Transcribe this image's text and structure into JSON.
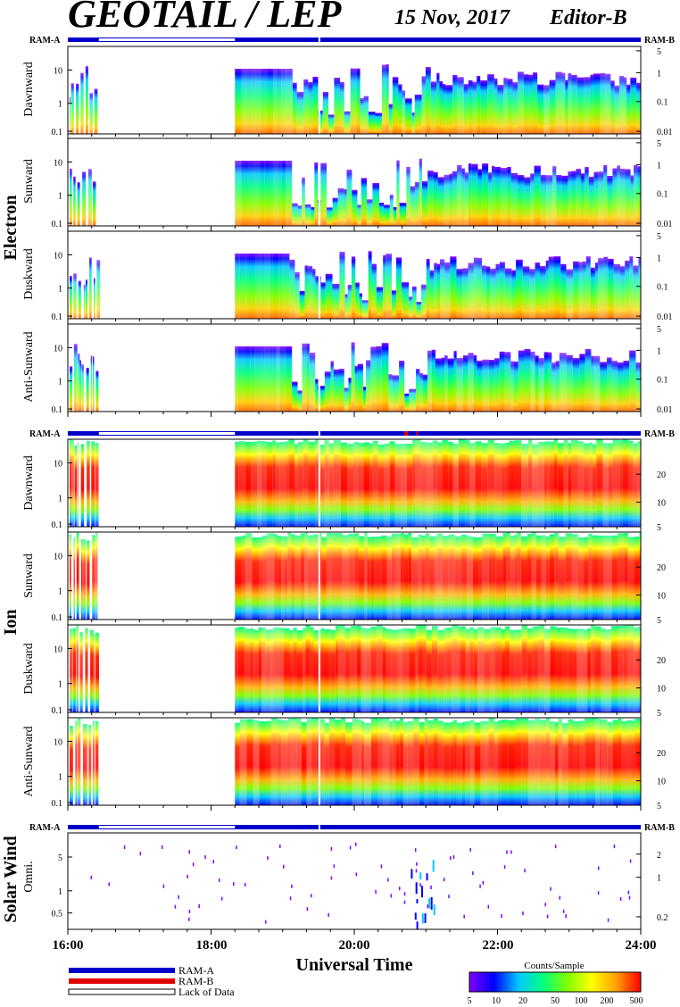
{
  "header": {
    "title": "GEOTAIL / LEP",
    "date": "15 Nov, 2017",
    "editor": "Editor-B"
  },
  "sections": {
    "electron": "Electron",
    "ion": "Ion",
    "solar_wind": "Solar Wind"
  },
  "status_labels": {
    "ram_a": "RAM-A",
    "ram_b": "RAM-B"
  },
  "panel_labels": [
    "Dawnward",
    "Sunward",
    "Duskward",
    "Anti-Sunward",
    "Dawnward",
    "Sunward",
    "Duskward",
    "Anti-Sunward",
    "Omni."
  ],
  "x_axis": {
    "label": "Universal Time",
    "ticks": [
      "16:00",
      "18:00",
      "20:00",
      "22:00",
      "24:00"
    ]
  },
  "legend": {
    "ram_a": "RAM-A",
    "ram_b": "RAM-B",
    "lack": "Lack of Data",
    "colors": {
      "ram_a": "#0000c8",
      "ram_b": "#e00000",
      "lack": "#ffffff"
    }
  },
  "colorbar": {
    "title": "Counts/Sample",
    "ticks": [
      "5",
      "10",
      "20",
      "50",
      "100",
      "200",
      "500"
    ],
    "colors": [
      "#7f00ff",
      "#0000ff",
      "#00c8ff",
      "#00ff80",
      "#80ff00",
      "#ffff00",
      "#ffa000",
      "#ff0000"
    ]
  },
  "chart_data": [
    {
      "type": "heatmap",
      "name": "Electron Dawnward",
      "x_range": [
        "16:00",
        "24:00"
      ],
      "left_ticks": [
        "10",
        "1",
        "0.1"
      ],
      "right_ticks": [
        "5",
        "1",
        "0.1",
        "0.01"
      ],
      "data_gaps": [
        [
          "16:24",
          "18:20"
        ]
      ]
    },
    {
      "type": "heatmap",
      "name": "Electron Sunward",
      "x_range": [
        "16:00",
        "24:00"
      ],
      "left_ticks": [
        "10",
        "1",
        "0.1"
      ],
      "right_ticks": [
        "5",
        "1",
        "0.1",
        "0.01"
      ],
      "data_gaps": [
        [
          "16:24",
          "18:20"
        ]
      ]
    },
    {
      "type": "heatmap",
      "name": "Electron Duskward",
      "x_range": [
        "16:00",
        "24:00"
      ],
      "left_ticks": [
        "10",
        "1",
        "0.1"
      ],
      "right_ticks": [
        "5",
        "1",
        "0.1",
        "0.01"
      ],
      "data_gaps": [
        [
          "16:24",
          "18:20"
        ]
      ]
    },
    {
      "type": "heatmap",
      "name": "Electron Anti-Sunward",
      "x_range": [
        "16:00",
        "24:00"
      ],
      "left_ticks": [
        "10",
        "1",
        "0.1"
      ],
      "right_ticks": [
        "5",
        "1",
        "0.1",
        "0.01"
      ],
      "data_gaps": [
        [
          "16:24",
          "18:20"
        ]
      ]
    },
    {
      "type": "heatmap",
      "name": "Ion Dawnward",
      "x_range": [
        "16:00",
        "24:00"
      ],
      "left_ticks": [
        "10",
        "1",
        "0.1"
      ],
      "right_ticks": [
        "20",
        "10",
        "5"
      ],
      "data_gaps": [
        [
          "16:24",
          "18:20"
        ]
      ]
    },
    {
      "type": "heatmap",
      "name": "Ion Sunward",
      "x_range": [
        "16:00",
        "24:00"
      ],
      "left_ticks": [
        "10",
        "1",
        "0.1"
      ],
      "right_ticks": [
        "20",
        "10",
        "5"
      ],
      "data_gaps": [
        [
          "16:24",
          "18:20"
        ]
      ]
    },
    {
      "type": "heatmap",
      "name": "Ion Duskward",
      "x_range": [
        "16:00",
        "24:00"
      ],
      "left_ticks": [
        "10",
        "1",
        "0.1"
      ],
      "right_ticks": [
        "20",
        "10",
        "5"
      ],
      "data_gaps": [
        [
          "16:24",
          "18:20"
        ]
      ]
    },
    {
      "type": "heatmap",
      "name": "Ion Anti-Sunward",
      "x_range": [
        "16:00",
        "24:00"
      ],
      "left_ticks": [
        "10",
        "1",
        "0.1"
      ],
      "right_ticks": [
        "20",
        "10",
        "5"
      ],
      "data_gaps": [
        [
          "16:24",
          "18:20"
        ]
      ]
    },
    {
      "type": "heatmap",
      "name": "Solar Wind Omni.",
      "x_range": [
        "16:00",
        "24:00"
      ],
      "left_ticks": [
        "5",
        "1",
        "0.5"
      ],
      "right_ticks": [
        "2",
        "1",
        "0.2"
      ],
      "data_gaps": []
    }
  ]
}
